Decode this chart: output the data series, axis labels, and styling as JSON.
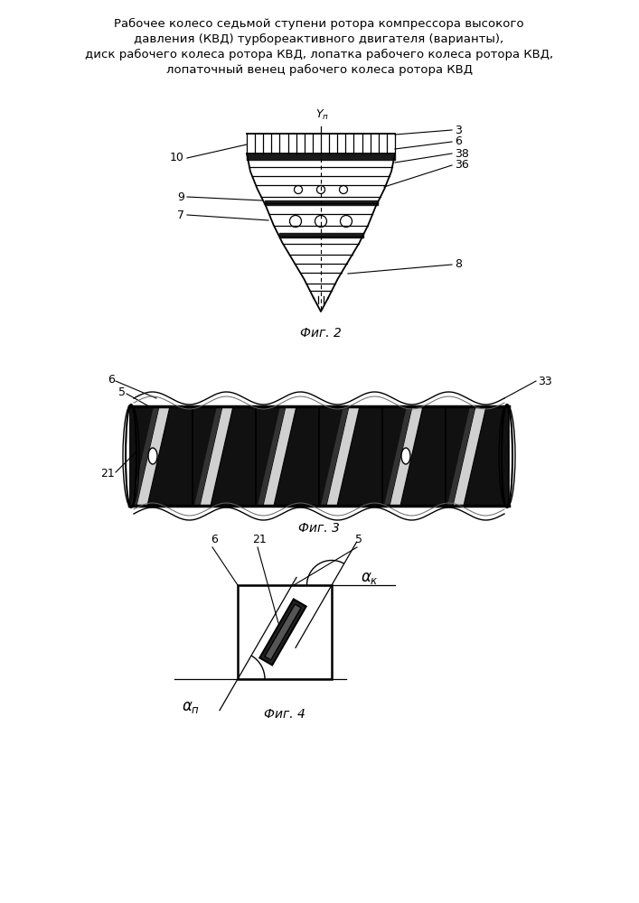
{
  "title_lines": [
    "Рабочее колесо седьмой ступени ротора компрессора высокого",
    "давления (КВД) турбореактивного двигателя (варианты),",
    "диск рабочего колеса ротора КВД, лопатка рабочего колеса ротора КВД,",
    "лопаточный венец рабочего колеса ротора КВД"
  ],
  "fig2_caption": "Фиг. 2",
  "fig3_caption": "Фиг. 3",
  "fig4_caption": "Фиг. 4",
  "bg_color": "#ffffff",
  "line_color": "#000000"
}
